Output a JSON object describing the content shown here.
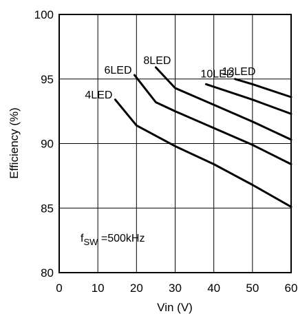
{
  "chart_data": {
    "type": "line",
    "xlabel": "Vin (V)",
    "ylabel": "Efficiency (%)",
    "xlim": [
      0,
      60
    ],
    "ylim": [
      80,
      100
    ],
    "xticks": [
      0,
      10,
      20,
      30,
      40,
      50,
      60
    ],
    "yticks": [
      80,
      85,
      90,
      95,
      100
    ],
    "grid": true,
    "annotation": {
      "prefix": "f",
      "subscript": "SW",
      "suffix": " =500kHz"
    },
    "series": [
      {
        "name": "4LED",
        "x": [
          14.5,
          20,
          30,
          40,
          50,
          60
        ],
        "y": [
          93.4,
          91.4,
          89.8,
          88.4,
          86.8,
          85.1
        ]
      },
      {
        "name": "6LED",
        "x": [
          19.5,
          25,
          30,
          40,
          50,
          60
        ],
        "y": [
          95.3,
          93.2,
          92.5,
          91.2,
          89.9,
          88.4
        ]
      },
      {
        "name": "8LED",
        "x": [
          25,
          30,
          40,
          50,
          60
        ],
        "y": [
          95.9,
          94.3,
          93.0,
          91.7,
          90.3
        ]
      },
      {
        "name": "10LED",
        "x": [
          38,
          50,
          60
        ],
        "y": [
          94.6,
          93.4,
          92.3
        ]
      },
      {
        "name": "12LED",
        "x": [
          45.5,
          50,
          60
        ],
        "y": [
          95.0,
          94.6,
          93.6
        ]
      }
    ]
  }
}
